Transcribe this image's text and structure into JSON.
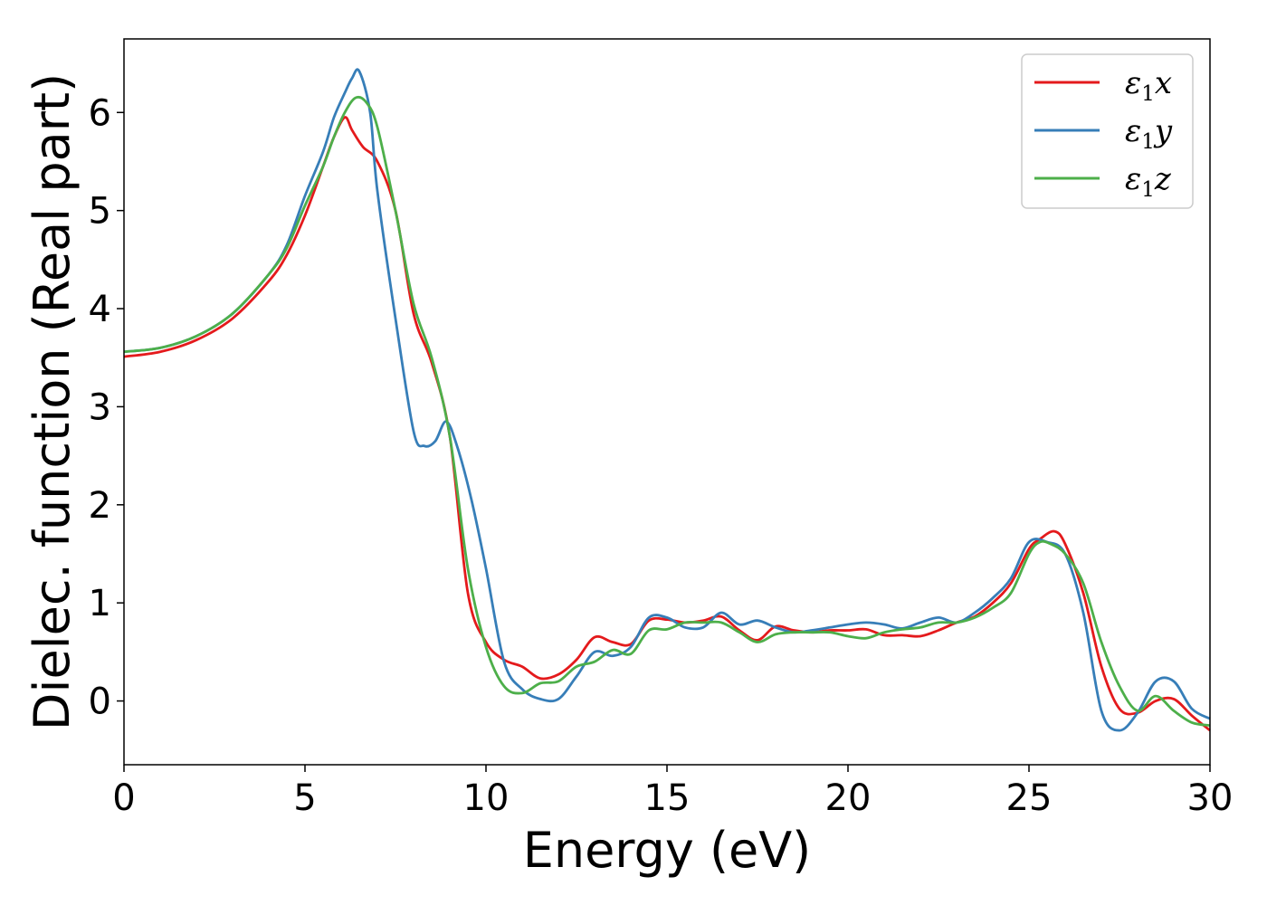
{
  "chart_data": {
    "type": "line",
    "title": "",
    "xlabel": "Energy (eV)",
    "ylabel": "Dielec. function (Real part)",
    "xlim": [
      0,
      30
    ],
    "ylim": [
      -0.65,
      6.75
    ],
    "xticks": [
      0,
      5,
      10,
      15,
      20,
      25,
      30
    ],
    "yticks": [
      0,
      1,
      2,
      3,
      4,
      5,
      6
    ],
    "grid": false,
    "legend_position": "top-right",
    "series": [
      {
        "name": "ε₁x",
        "legend_main": "ε",
        "legend_sub": "1",
        "legend_suffix": "x",
        "color": "#e41a1c",
        "x": [
          0,
          1,
          2,
          3,
          4,
          4.5,
          5,
          5.5,
          5.8,
          6.1,
          6.3,
          6.6,
          7,
          7.5,
          8,
          8.5,
          9,
          9.5,
          10,
          10.5,
          11,
          11.5,
          12,
          12.5,
          13,
          13.5,
          14,
          14.5,
          15,
          15.5,
          16,
          16.5,
          17,
          17.5,
          18,
          18.5,
          19,
          19.5,
          20,
          20.5,
          21,
          21.5,
          22,
          22.5,
          23,
          23.5,
          24,
          24.5,
          25,
          25.3,
          25.7,
          26,
          26.5,
          27,
          27.5,
          28,
          28.5,
          29,
          29.5,
          30
        ],
        "y": [
          3.51,
          3.56,
          3.68,
          3.9,
          4.28,
          4.55,
          4.95,
          5.45,
          5.75,
          5.95,
          5.82,
          5.65,
          5.5,
          5.0,
          3.95,
          3.45,
          2.7,
          1.1,
          0.6,
          0.42,
          0.35,
          0.23,
          0.27,
          0.42,
          0.65,
          0.6,
          0.58,
          0.82,
          0.83,
          0.8,
          0.82,
          0.86,
          0.72,
          0.62,
          0.76,
          0.72,
          0.7,
          0.72,
          0.72,
          0.73,
          0.67,
          0.67,
          0.66,
          0.72,
          0.8,
          0.86,
          1.0,
          1.2,
          1.55,
          1.65,
          1.73,
          1.6,
          1.1,
          0.35,
          -0.08,
          -0.12,
          0.0,
          0.02,
          -0.15,
          -0.3
        ]
      },
      {
        "name": "ε₁y",
        "legend_main": "ε",
        "legend_sub": "1",
        "legend_suffix": "y",
        "color": "#377eb8",
        "x": [
          0,
          1,
          2,
          3,
          4,
          4.5,
          5,
          5.5,
          5.8,
          6.1,
          6.3,
          6.5,
          6.8,
          7,
          7.5,
          8,
          8.3,
          8.6,
          8.9,
          9.2,
          9.6,
          10,
          10.5,
          11,
          11.5,
          12,
          12.5,
          13,
          13.5,
          14,
          14.5,
          15,
          15.5,
          16,
          16.5,
          17,
          17.5,
          18,
          18.5,
          19,
          19.5,
          20,
          20.5,
          21,
          21.5,
          22,
          22.5,
          23,
          23.5,
          24,
          24.5,
          25,
          25.5,
          26,
          26.5,
          27,
          27.5,
          28,
          28.5,
          29,
          29.5,
          30
        ],
        "y": [
          3.56,
          3.6,
          3.72,
          3.95,
          4.35,
          4.65,
          5.15,
          5.6,
          5.95,
          6.2,
          6.35,
          6.42,
          6.0,
          5.2,
          3.9,
          2.75,
          2.6,
          2.65,
          2.85,
          2.6,
          2.05,
          1.35,
          0.4,
          0.12,
          0.02,
          0.02,
          0.25,
          0.5,
          0.46,
          0.55,
          0.85,
          0.85,
          0.75,
          0.75,
          0.9,
          0.78,
          0.82,
          0.75,
          0.7,
          0.72,
          0.75,
          0.78,
          0.8,
          0.78,
          0.74,
          0.8,
          0.85,
          0.8,
          0.9,
          1.05,
          1.25,
          1.62,
          1.62,
          1.5,
          0.9,
          -0.1,
          -0.3,
          -0.12,
          0.2,
          0.2,
          -0.08,
          -0.18
        ]
      },
      {
        "name": "ε₁z",
        "legend_main": "ε",
        "legend_sub": "1",
        "legend_suffix": "z",
        "color": "#4daf4a",
        "x": [
          0,
          1,
          2,
          3,
          4,
          4.5,
          5,
          5.5,
          5.8,
          6.1,
          6.4,
          6.7,
          7,
          7.5,
          8,
          8.5,
          9,
          9.5,
          10,
          10.5,
          11,
          11.5,
          12,
          12.5,
          13,
          13.5,
          14,
          14.5,
          15,
          15.5,
          16,
          16.5,
          17,
          17.5,
          18,
          18.5,
          19,
          19.5,
          20,
          20.5,
          21,
          21.5,
          22,
          22.5,
          23,
          23.5,
          24,
          24.5,
          25,
          25.3,
          25.6,
          26,
          26.5,
          27,
          27.5,
          28,
          28.5,
          29,
          29.5,
          30
        ],
        "y": [
          3.56,
          3.6,
          3.72,
          3.95,
          4.35,
          4.62,
          5.05,
          5.45,
          5.75,
          6.0,
          6.15,
          6.1,
          5.85,
          5.0,
          4.05,
          3.5,
          2.7,
          1.35,
          0.55,
          0.15,
          0.08,
          0.18,
          0.2,
          0.35,
          0.4,
          0.52,
          0.48,
          0.72,
          0.73,
          0.8,
          0.8,
          0.8,
          0.7,
          0.6,
          0.68,
          0.7,
          0.7,
          0.7,
          0.66,
          0.64,
          0.7,
          0.73,
          0.75,
          0.8,
          0.8,
          0.85,
          0.95,
          1.1,
          1.5,
          1.62,
          1.6,
          1.5,
          1.2,
          0.6,
          0.15,
          -0.1,
          0.05,
          -0.1,
          -0.22,
          -0.25
        ]
      }
    ]
  }
}
